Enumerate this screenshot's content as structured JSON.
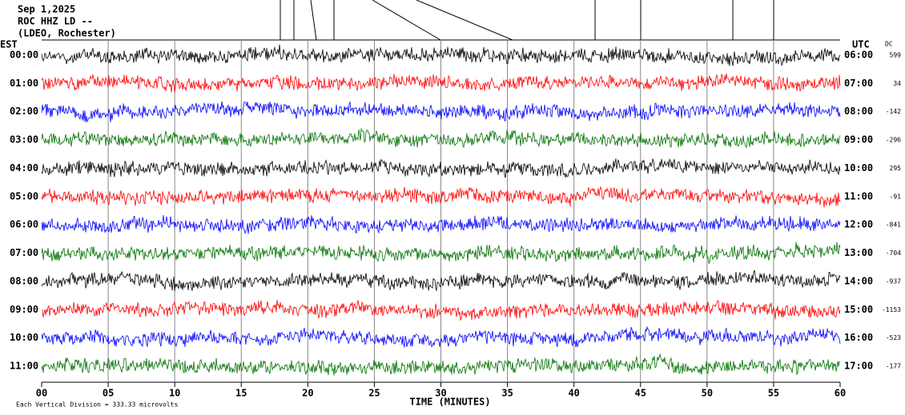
{
  "header": {
    "date": "Sep 1,2025",
    "station": "ROC HHZ LD --",
    "network": "(LDEO, Rochester)"
  },
  "est_label": "EST",
  "utc_label": "UTC",
  "dc_label": "DC",
  "rows": [
    {
      "est": "00:00",
      "utc": "06:00",
      "dc": "599",
      "color": "#000000"
    },
    {
      "est": "01:00",
      "utc": "07:00",
      "dc": "34",
      "color": "#ff0000"
    },
    {
      "est": "02:00",
      "utc": "08:00",
      "dc": "-142",
      "color": "#0000ff"
    },
    {
      "est": "03:00",
      "utc": "09:00",
      "dc": "-296",
      "color": "#007000"
    },
    {
      "est": "04:00",
      "utc": "10:00",
      "dc": "295",
      "color": "#000000"
    },
    {
      "est": "05:00",
      "utc": "11:00",
      "dc": "-91",
      "color": "#ff0000"
    },
    {
      "est": "06:00",
      "utc": "12:00",
      "dc": "-841",
      "color": "#0000ff"
    },
    {
      "est": "07:00",
      "utc": "13:00",
      "dc": "-704",
      "color": "#007000"
    },
    {
      "est": "08:00",
      "utc": "14:00",
      "dc": "-937",
      "color": "#000000"
    },
    {
      "est": "09:00",
      "utc": "15:00",
      "dc": "-1153",
      "color": "#ff0000"
    },
    {
      "est": "10:00",
      "utc": "16:00",
      "dc": "-523",
      "color": "#0000ff"
    },
    {
      "est": "11:00",
      "utc": "17:00",
      "dc": "-177",
      "color": "#007000"
    }
  ],
  "x_axis": {
    "ticks": [
      "00",
      "05",
      "10",
      "15",
      "20",
      "25",
      "30",
      "35",
      "40",
      "45",
      "50",
      "55",
      "60"
    ],
    "label": "TIME (MINUTES)"
  },
  "footer": "Each Vertical Division =  333.33 microvolts"
}
